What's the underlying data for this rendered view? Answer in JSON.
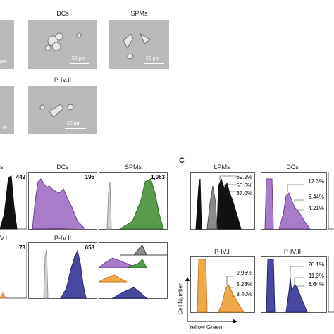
{
  "micrographs": {
    "dcs_title": "DCs",
    "spms_title": "SPMs",
    "p4ii_title": "P-IV.II",
    "scale_dcs": "50 μm",
    "scale_spms": "50 μm",
    "scale_p4ii": "50 μm",
    "scale_left_1": "μm",
    "scale_left_2": "m"
  },
  "panel_b": {
    "titles": {
      "s": "s",
      "dcs": "DCs",
      "spms": "SPMs",
      "pivii": "P-IV.II",
      "pivi_partial": "V.I"
    },
    "counts": {
      "first": "449",
      "dcs": "195",
      "spms": "1,063",
      "pivi": "73",
      "pivii": "658"
    }
  },
  "panel_c": {
    "letter": "C",
    "titles": {
      "lpms": "LPMs",
      "dcs": "DCs",
      "pivi": "P-IV.I",
      "pivii": "P-IV.II"
    },
    "lpms_pct": [
      "69.2%",
      "50.6%",
      "37.0%"
    ],
    "dcs_pct": [
      "12.3%",
      "6.44%",
      "4.21%"
    ],
    "pivi_pct": [
      "9.96%",
      "5.28%",
      "3.40%"
    ],
    "pivii_pct": [
      "20.1%",
      "11.3%",
      "6.64%"
    ],
    "ylabel": "Cell Number",
    "xlabel": "Yellow Green"
  },
  "colors": {
    "gray": "#8a8a8a",
    "black": "#111111",
    "purple": "#a87cc8",
    "green": "#5a9a4c",
    "orange": "#f0a84a",
    "blue": "#4848a0",
    "lightgray": "#d0d0d0"
  }
}
